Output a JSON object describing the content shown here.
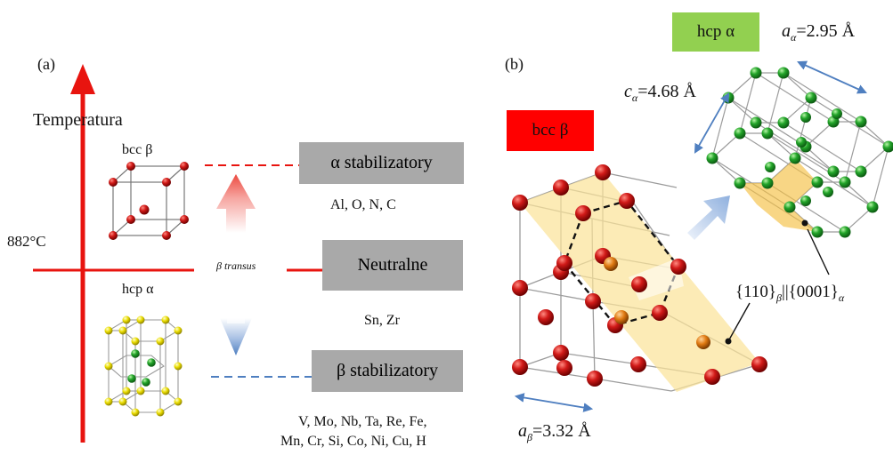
{
  "panel_a": {
    "label": "(a)",
    "axis_title": "Temperatura",
    "temp_label": "882°C",
    "transus_label": "β transus",
    "phase_top": "bcc β",
    "phase_bottom": "hcp α",
    "alpha_box": "α stabilizatory",
    "alpha_elements": "Al, O, N, C",
    "neutral_box": "Neutralne",
    "neutral_elements": "Sn, Zr",
    "beta_box": "β stabilizatory",
    "beta_elements_line1": "V, Mo, Nb, Ta, Re, Fe,",
    "beta_elements_line2": "Mn, Cr, Si, Co, Ni, Cu, H"
  },
  "panel_b": {
    "label": "(b)",
    "bcc_tag": "bcc β",
    "hcp_tag": "hcp α",
    "a_alpha_sym": "a",
    "a_alpha_sub": "α",
    "a_alpha_val": "=2.95 Å",
    "c_alpha_sym": "c",
    "c_alpha_sub": "α",
    "c_alpha_val": "=4.68 Å",
    "a_beta_sym": "a",
    "a_beta_sub": "β",
    "a_beta_val": "=3.32 Å",
    "plane_a": "{110}",
    "plane_a_sub": "β",
    "plane_sep": "||",
    "plane_b": "{0001}",
    "plane_b_sub": "α"
  },
  "colors": {
    "red": "#e8140f",
    "blue_dash": "#4f7fc0",
    "gray_box": "#a9a9a9",
    "bcc_tag": "#ff0000",
    "hcp_tag": "#92d050",
    "plane_fill": "#fbe39a",
    "atom_red": "#c0181a",
    "atom_green": "#1fa82c",
    "atom_yellow": "#f2e60f",
    "atom_orange": "#e07a12"
  }
}
